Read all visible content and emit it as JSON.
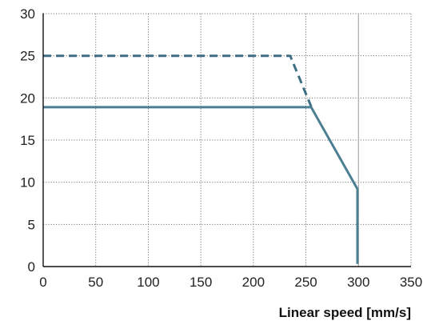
{
  "chart_data": {
    "type": "line",
    "xlabel": "Linear speed [mm/s]",
    "ylabel": "",
    "xlim": [
      0,
      350
    ],
    "ylim": [
      0,
      30
    ],
    "x_ticks": [
      0,
      50,
      100,
      150,
      200,
      250,
      300,
      350
    ],
    "y_ticks": [
      0,
      5,
      10,
      15,
      20,
      25,
      30
    ],
    "grid": true,
    "legend": "none",
    "series": [
      {
        "style": "dashed",
        "color": "#3f6f85",
        "points": [
          [
            0,
            25
          ],
          [
            235,
            25
          ],
          [
            255,
            19
          ]
        ]
      },
      {
        "style": "solid",
        "color": "#4d7f93",
        "points": [
          [
            0,
            18.9
          ],
          [
            255,
            18.9
          ],
          [
            299,
            9.2
          ],
          [
            299,
            0.3
          ]
        ]
      }
    ],
    "reference_lines": [
      {
        "orientation": "vertical",
        "x": 300,
        "color": "#a8a8a8"
      }
    ]
  }
}
